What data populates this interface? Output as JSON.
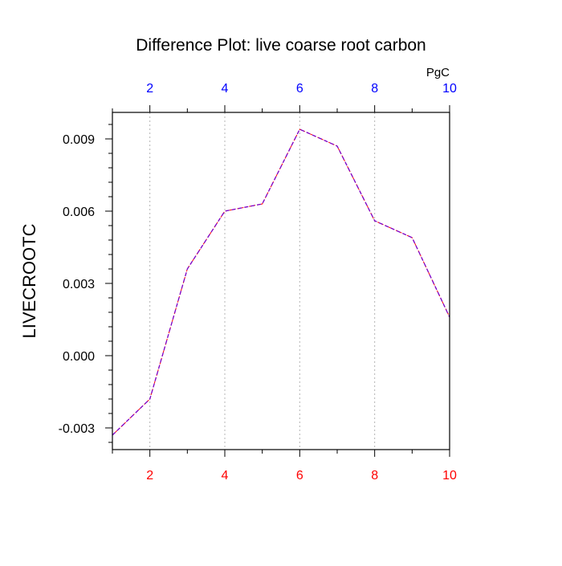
{
  "chart_data": {
    "type": "line",
    "title": "Difference Plot: live coarse root carbon",
    "ylabel": "LIVECROOTC",
    "units": "PgC",
    "x": [
      1,
      2,
      3,
      4,
      5,
      6,
      7,
      8,
      9,
      10
    ],
    "series": [
      {
        "values": [
          -0.0033,
          -0.0018,
          0.0036,
          0.006,
          0.0063,
          0.0094,
          0.0087,
          0.0056,
          0.0049,
          0.0016
        ],
        "color": "#7a00c8"
      }
    ],
    "xlim": [
      1,
      10
    ],
    "ylim": [
      -0.0039,
      0.0101
    ],
    "x_ticks": [
      2,
      4,
      6,
      8,
      10
    ],
    "x_tick_labels": [
      "2",
      "4",
      "6",
      "8",
      "10"
    ],
    "x_minor_ticks": [
      1,
      3,
      5,
      7,
      9
    ],
    "y_ticks": [
      -0.003,
      0.0,
      0.003,
      0.006,
      0.009
    ],
    "y_tick_labels": [
      "-0.003",
      "0.000",
      "0.003",
      "0.006",
      "0.009"
    ],
    "y_minor_step": 0.0006,
    "bottom_axis_color": "#ff0000",
    "top_axis_color": "#0000ff",
    "vertical_gridlines": true,
    "gridline_color": "#b4b4b4"
  }
}
